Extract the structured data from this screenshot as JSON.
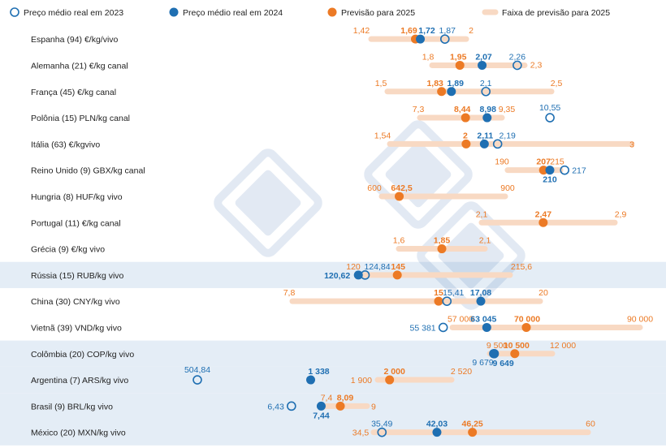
{
  "chart_data": {
    "type": "dot-range",
    "legend": [
      {
        "key": "real2023",
        "label": "Preço médio real em 2023"
      },
      {
        "key": "real2024",
        "label": "Preço médio real em 2024"
      },
      {
        "key": "prev2025",
        "label": "Previsão para 2025"
      },
      {
        "key": "range2025",
        "label": "Faixa de previsão para 2025"
      }
    ],
    "colors": {
      "blue": "#1f6fb2",
      "orange": "#ec7a25",
      "band": "#f8d9c3",
      "highlight": "#e4edf6",
      "text": "#222222"
    },
    "rows": [
      {
        "name": "Espanha (94)  €/kg/vivo",
        "highlight": false,
        "points": {
          "real2023": 1.87,
          "real2024": 1.72,
          "prev2025": 1.69,
          "range_min": 1.42,
          "range_max": 2
        },
        "labels": {
          "real2023": "1,87",
          "real2024": "1,72",
          "prev2025": "1,69",
          "range_min": "1,42",
          "range_max": "2"
        }
      },
      {
        "name": "Alemanha (21) €/kg canal",
        "highlight": false,
        "points": {
          "real2023": 2.26,
          "real2024": 2.07,
          "prev2025": 1.95,
          "range_min": 1.8,
          "range_max": 2.3
        },
        "labels": {
          "real2023": "2,26",
          "real2024": "2,07",
          "prev2025": "1,95",
          "range_min": "1,8",
          "range_max": "2,3"
        }
      },
      {
        "name": "França (45) €/kg canal",
        "highlight": false,
        "points": {
          "real2023": 2.1,
          "real2024": 1.89,
          "prev2025": 1.83,
          "range_min": 1.5,
          "range_max": 2.5
        },
        "labels": {
          "real2023": "2,1",
          "real2024": "1,89",
          "prev2025": "1,83",
          "range_min": "1,5",
          "range_max": "2,5"
        }
      },
      {
        "name": "Polônia (15) PLN/kg canal",
        "highlight": false,
        "points": {
          "real2023": 10.55,
          "real2024": 8.98,
          "prev2025": 8.44,
          "range_min": 7.3,
          "range_max": 9.35
        },
        "labels": {
          "real2023": "10,55",
          "real2024": "8,98",
          "prev2025": "8,44",
          "range_min": "7,3",
          "range_max": "9,35"
        }
      },
      {
        "name": "Itália (63) €/kgvivo",
        "highlight": false,
        "points": {
          "real2023": 2.19,
          "real2024": 2.11,
          "prev2025": 2,
          "range_min": 1.54,
          "range_max": 3
        },
        "labels": {
          "real2023": "2,19",
          "real2024": "2,11",
          "prev2025": "2",
          "range_min": "1,54",
          "range_max": "3"
        }
      },
      {
        "name": "Reino Unido (9) GBX/kg canal",
        "highlight": false,
        "points": {
          "real2023": 217,
          "real2024": 210,
          "prev2025": 207,
          "range_min": 190,
          "range_max": 215
        },
        "labels": {
          "real2023": "217",
          "real2024": "210",
          "prev2025": "207",
          "range_min": "190",
          "range_max": "215"
        }
      },
      {
        "name": "Hungria (8) HUF/kg vivo",
        "highlight": false,
        "points": {
          "real2023": null,
          "real2024": null,
          "prev2025": 642.5,
          "range_min": 600,
          "range_max": 900
        },
        "labels": {
          "prev2025": "642,5",
          "range_min": "600",
          "range_max": "900"
        }
      },
      {
        "name": "Portugal (11) €/kg canal",
        "highlight": false,
        "points": {
          "real2023": null,
          "real2024": null,
          "prev2025": 2.47,
          "range_min": 2.1,
          "range_max": 2.9
        },
        "labels": {
          "prev2025": "2,47",
          "range_min": "2,1",
          "range_max": "2,9"
        }
      },
      {
        "name": "Grécia (9) €/kg vivo",
        "highlight": false,
        "points": {
          "real2023": null,
          "real2024": null,
          "prev2025": 1.85,
          "range_min": 1.6,
          "range_max": 2.1
        },
        "labels": {
          "prev2025": "1,85",
          "range_min": "1,6",
          "range_max": "2,1"
        }
      },
      {
        "name": "Rússia (15) RUB/kg vivo",
        "highlight": true,
        "points": {
          "real2023": 124.84,
          "real2024": 120.62,
          "prev2025": 145,
          "range_min": 120,
          "range_max": 215.6
        },
        "labels": {
          "real2023": "124,84",
          "real2024": "120,62",
          "prev2025": "145",
          "range_min": "120",
          "range_max": "215,6"
        }
      },
      {
        "name": "China (30) CNY/kg vivo",
        "highlight": false,
        "points": {
          "real2023": 15.41,
          "real2024": 17.08,
          "prev2025": 15,
          "range_min": 7.8,
          "range_max": 20
        },
        "labels": {
          "real2023": "15,41",
          "real2024": "17,08",
          "prev2025": "15",
          "range_min": "7,8",
          "range_max": "20"
        }
      },
      {
        "name": "Vietnã (39) VND/kg vivo",
        "highlight": false,
        "points": {
          "real2023": 55381,
          "real2024": 63045,
          "prev2025": 70000,
          "range_min": 57000,
          "range_max": 90000
        },
        "labels": {
          "real2023": "55 381",
          "real2024": "63 045",
          "prev2025": "70 000",
          "range_min": "57 000",
          "range_max": "90 000"
        }
      },
      {
        "name": "Colômbia (20) COP/kg vivo",
        "highlight": true,
        "points": {
          "real2023": 9679,
          "real2024": 9649,
          "prev2025": 10500,
          "range_min": 9500,
          "range_max": 12000
        },
        "labels": {
          "real2023": "9 679",
          "real2024": "9 649",
          "prev2025": "10 500",
          "range_min": "9 500",
          "range_max": "12 000"
        }
      },
      {
        "name": "Argentina (7) ARS/kg vivo",
        "highlight": true,
        "points": {
          "real2023": 504.84,
          "real2024": 1338,
          "prev2025": 2000,
          "range_min": 1900,
          "range_max": 2520
        },
        "labels": {
          "real2023": "504,84",
          "real2024": "1 338",
          "prev2025": "2 000",
          "range_min": "1 900",
          "range_max": "2 520"
        }
      },
      {
        "name": "Brasil (9) BRL/kg vivo",
        "highlight": true,
        "points": {
          "real2023": 6.43,
          "real2024": 7.44,
          "prev2025": 8.09,
          "range_min": 7.4,
          "range_max": 9
        },
        "labels": {
          "real2023": "6,43",
          "real2024": "7,44",
          "prev2025": "8,09",
          "range_min": "7,4",
          "range_max": "9"
        }
      },
      {
        "name": "México (20) MXN/kg vivo",
        "highlight": true,
        "points": {
          "real2023": 35.49,
          "real2024": 42.03,
          "prev2025": 46.25,
          "range_min": 34.5,
          "range_max": 60
        },
        "labels": {
          "real2023": "35,49",
          "real2024": "42,03",
          "prev2025": "46,25",
          "range_min": "34,5",
          "range_max": "60"
        }
      }
    ]
  }
}
